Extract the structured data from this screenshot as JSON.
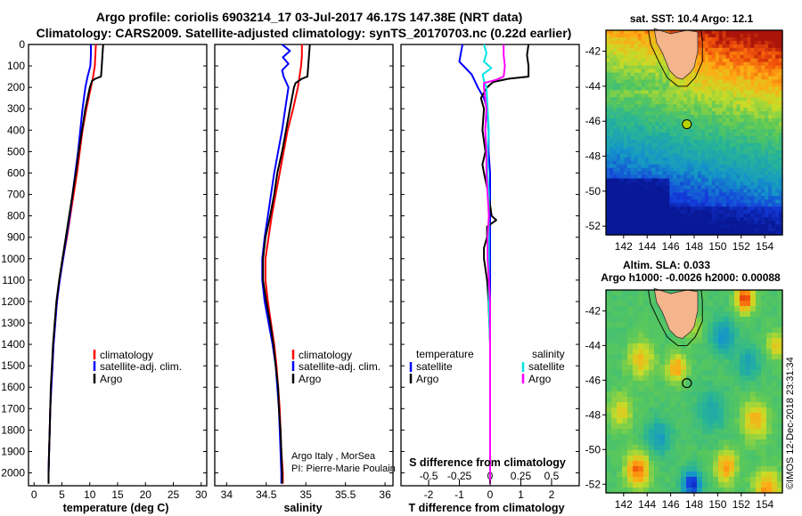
{
  "header": {
    "title_line1": "Argo profile: coriolis 6903214_17 03-Jul-2017 46.17S 147.38E (NRT data)",
    "title_line2": "Climatology: CARS2009. Satellite-adjusted climatology: synTS_20170703.nc (0.22d earlier)"
  },
  "colors": {
    "climatology": "#ff0000",
    "satellite": "#0000ff",
    "argo": "#000000",
    "argo_salinity_diff": "#ff00ff",
    "satellite_salinity_diff": "#00e5e5",
    "land": "#f4b48c"
  },
  "depth_ticks": [
    "0",
    "100",
    "200",
    "300",
    "400",
    "500",
    "600",
    "700",
    "800",
    "900",
    "1000",
    "1100",
    "1200",
    "1300",
    "1400",
    "1500",
    "1600",
    "1700",
    "1800",
    "1900",
    "2000"
  ],
  "credits": {
    "line1": "Argo Italy , MorSea",
    "line2": "PI: Pierre-Marie Poulain",
    "timestamp": "©IMOS 12-Dec-2018 23:31:34"
  },
  "maps": {
    "sst_title": "sat. SST: 10.4 Argo: 12.1",
    "sla_title1": "Altim. SLA: 0.033",
    "sla_title2": "Argo h1000: -0.0026 h2000: 0.00088",
    "lat_ticks": [
      "-42",
      "-44",
      "-46",
      "-48",
      "-50",
      "-52"
    ],
    "lon_ticks": [
      "142",
      "144",
      "146",
      "148",
      "150",
      "152",
      "154"
    ],
    "float_position": {
      "lon": 147.38,
      "lat": -46.17
    }
  },
  "chart_data": [
    {
      "type": "line",
      "id": "temperature",
      "xlabel": "temperature (deg C)",
      "ylabel": "",
      "xlim": [
        -1,
        31
      ],
      "ylim": [
        2060,
        0
      ],
      "x_ticks": [
        0,
        5,
        10,
        15,
        20,
        25,
        30
      ],
      "x_tick_labels": [
        "0",
        "5",
        "10",
        "15",
        "20",
        "25",
        "30"
      ],
      "legend": {
        "position": "bottom-right",
        "entries": [
          "climatology",
          "satellite-adj. clim.",
          "Argo"
        ]
      },
      "series": [
        {
          "name": "climatology",
          "color_key": "climatology",
          "depth": [
            0,
            50,
            100,
            150,
            200,
            300,
            400,
            500,
            600,
            700,
            800,
            900,
            1000,
            1100,
            1200,
            1300,
            1400,
            1500,
            1600,
            1700,
            1800,
            1900,
            2000,
            2050
          ],
          "values": [
            11.1,
            11.0,
            10.9,
            10.6,
            10.2,
            9.4,
            8.7,
            8.2,
            7.7,
            7.1,
            6.5,
            5.9,
            5.2,
            4.6,
            4.1,
            3.8,
            3.5,
            3.3,
            3.1,
            2.9,
            2.8,
            2.7,
            2.6,
            2.6
          ]
        },
        {
          "name": "satellite-adj. clim.",
          "color_key": "satellite",
          "depth": [
            0,
            50,
            100,
            150,
            200,
            300,
            400,
            500,
            600,
            700,
            800,
            900,
            1000,
            1100,
            1200,
            1300,
            1400,
            1500,
            1600,
            1700,
            1800,
            1900,
            2000,
            2050
          ],
          "values": [
            10.2,
            10.2,
            10.1,
            9.6,
            9.2,
            8.7,
            8.3,
            7.9,
            7.4,
            6.9,
            6.4,
            5.8,
            5.2,
            4.6,
            4.1,
            3.8,
            3.5,
            3.3,
            3.1,
            2.9,
            2.8,
            2.7,
            2.6,
            2.6
          ]
        },
        {
          "name": "Argo",
          "color_key": "argo",
          "depth": [
            0,
            40,
            80,
            120,
            150,
            160,
            170,
            200,
            300,
            400,
            500,
            600,
            700,
            800,
            900,
            1000,
            1100,
            1200,
            1300,
            1400,
            1500,
            1600,
            1700,
            1800,
            1900,
            2000,
            2050
          ],
          "values": [
            12.4,
            12.3,
            12.2,
            12.1,
            12.0,
            11.0,
            10.4,
            10.0,
            9.2,
            8.6,
            8.0,
            7.5,
            6.9,
            6.3,
            5.7,
            5.1,
            4.5,
            4.0,
            3.7,
            3.4,
            3.2,
            3.0,
            2.9,
            2.8,
            2.7,
            2.6,
            2.6
          ]
        }
      ]
    },
    {
      "type": "line",
      "id": "salinity",
      "xlabel": "salinity",
      "ylabel": "",
      "xlim": [
        33.85,
        36.1
      ],
      "ylim": [
        2060,
        0
      ],
      "x_ticks": [
        34,
        34.5,
        35,
        35.5,
        36
      ],
      "x_tick_labels": [
        "34",
        "34.5",
        "35",
        "35.5",
        "36"
      ],
      "legend": {
        "position": "bottom-right",
        "entries": [
          "climatology",
          "satellite-adj. clim.",
          "Argo"
        ]
      },
      "series": [
        {
          "name": "climatology",
          "color_key": "climatology",
          "depth": [
            0,
            50,
            100,
            150,
            200,
            300,
            400,
            500,
            600,
            700,
            800,
            900,
            1000,
            1100,
            1200,
            1300,
            1400,
            1500,
            1600,
            1700,
            1800,
            1900,
            2000,
            2050
          ],
          "values": [
            34.95,
            34.95,
            34.94,
            34.92,
            34.9,
            34.84,
            34.77,
            34.72,
            34.67,
            34.62,
            34.57,
            34.53,
            34.49,
            34.49,
            34.52,
            34.56,
            34.6,
            34.63,
            34.65,
            34.67,
            34.68,
            34.69,
            34.71,
            34.71
          ]
        },
        {
          "name": "satellite-adj. clim.",
          "color_key": "satellite",
          "depth": [
            0,
            30,
            60,
            90,
            120,
            150,
            200,
            300,
            400,
            500,
            600,
            700,
            800,
            900,
            1000,
            1100,
            1200,
            1300,
            1400,
            1500,
            1600,
            1700,
            1800,
            1900,
            2000,
            2050
          ],
          "values": [
            34.7,
            34.8,
            34.71,
            34.78,
            34.7,
            34.72,
            34.78,
            34.74,
            34.7,
            34.65,
            34.6,
            34.56,
            34.52,
            34.48,
            34.45,
            34.45,
            34.48,
            34.53,
            34.58,
            34.62,
            34.64,
            34.66,
            34.67,
            34.68,
            34.69,
            34.69
          ]
        },
        {
          "name": "Argo",
          "color_key": "argo",
          "depth": [
            0,
            50,
            100,
            150,
            160,
            180,
            200,
            300,
            400,
            500,
            600,
            700,
            800,
            900,
            1000,
            1100,
            1200,
            1300,
            1400,
            1500,
            1600,
            1700,
            1800,
            1900,
            2000,
            2050
          ],
          "values": [
            35.05,
            35.04,
            35.03,
            35.02,
            34.95,
            34.87,
            34.85,
            34.8,
            34.75,
            34.7,
            34.64,
            34.6,
            34.55,
            34.49,
            34.46,
            34.46,
            34.5,
            34.55,
            34.59,
            34.62,
            34.65,
            34.66,
            34.68,
            34.69,
            34.7,
            34.7
          ]
        }
      ]
    },
    {
      "type": "line",
      "id": "difference",
      "xlabel": "T difference from climatology",
      "x2label": "S difference from climatology",
      "ylabel": "",
      "xlim": [
        -2.9,
        2.9
      ],
      "ylim": [
        2060,
        0
      ],
      "x_ticks": [
        -2,
        -1,
        0,
        1,
        2
      ],
      "x_tick_labels": [
        "-2",
        "-1",
        "0",
        "1",
        "2"
      ],
      "x2_ticks": [
        -0.5,
        -0.25,
        0,
        0.25,
        0.5
      ],
      "x2_tick_labels": [
        "-0.5",
        "-0.25",
        "0",
        "0.25",
        "0.5"
      ],
      "x2lim": [
        -0.725,
        0.725
      ],
      "legend": {
        "position": "bottom",
        "left_header": "temperature",
        "right_header": "salinity",
        "left_entries": [
          "satellite",
          "Argo"
        ],
        "right_entries": [
          "satellite",
          "Argo"
        ]
      },
      "series": [
        {
          "name": "satellite",
          "group": "temperature",
          "color_key": "satellite",
          "depth": [
            0,
            40,
            80,
            110,
            140,
            170,
            200,
            250,
            300,
            400,
            500,
            600,
            700,
            800,
            900,
            1000,
            1200,
            1400,
            1600,
            1800,
            2000,
            2050
          ],
          "values": [
            -0.9,
            -0.95,
            -1.0,
            -0.8,
            -0.6,
            -0.5,
            -0.4,
            -0.2,
            -0.1,
            -0.05,
            -0.05,
            0,
            0,
            0,
            0,
            0,
            0,
            0,
            0,
            0,
            0,
            0
          ]
        },
        {
          "name": "Argo",
          "group": "temperature",
          "color_key": "argo",
          "depth": [
            0,
            50,
            100,
            150,
            160,
            175,
            200,
            250,
            300,
            400,
            500,
            560,
            600,
            700,
            800,
            820,
            850,
            900,
            950,
            1000,
            1100,
            1200,
            1400,
            1600,
            1800,
            2000,
            2050
          ],
          "values": [
            1.25,
            1.2,
            1.25,
            1.25,
            0.6,
            0.1,
            -0.1,
            -0.3,
            -0.2,
            -0.25,
            -0.15,
            -0.25,
            -0.2,
            -0.05,
            0.05,
            0.2,
            -0.1,
            -0.1,
            -0.2,
            -0.2,
            -0.1,
            -0.05,
            0,
            0,
            0,
            0,
            0
          ]
        },
        {
          "name": "satellite",
          "group": "salinity",
          "color_key": "satellite_salinity_diff",
          "depth": [
            0,
            40,
            80,
            110,
            140,
            170,
            200,
            300,
            400,
            500,
            600,
            700,
            800,
            900,
            1000,
            1100,
            1200,
            1400,
            1600,
            1800,
            2000,
            2050
          ],
          "values": [
            -0.05,
            -0.03,
            -0.05,
            0.01,
            -0.06,
            -0.05,
            -0.03,
            -0.02,
            -0.01,
            -0.02,
            -0.02,
            -0.01,
            -0.01,
            -0.01,
            -0.01,
            -0.01,
            -0.01,
            0,
            0,
            0,
            0,
            0
          ]
        },
        {
          "name": "Argo",
          "group": "salinity",
          "color_key": "argo_salinity_diff",
          "depth": [
            0,
            50,
            100,
            150,
            165,
            180,
            200,
            300,
            400,
            500,
            600,
            700,
            800,
            900,
            1000,
            1100,
            1200,
            1400,
            1600,
            1800,
            2000,
            2050
          ],
          "values": [
            0.11,
            0.11,
            0.12,
            0.11,
            0.05,
            -0.05,
            -0.05,
            -0.03,
            -0.04,
            -0.03,
            -0.03,
            -0.02,
            -0.01,
            -0.02,
            -0.02,
            -0.01,
            0,
            0,
            0,
            0,
            0,
            0
          ]
        }
      ]
    }
  ]
}
